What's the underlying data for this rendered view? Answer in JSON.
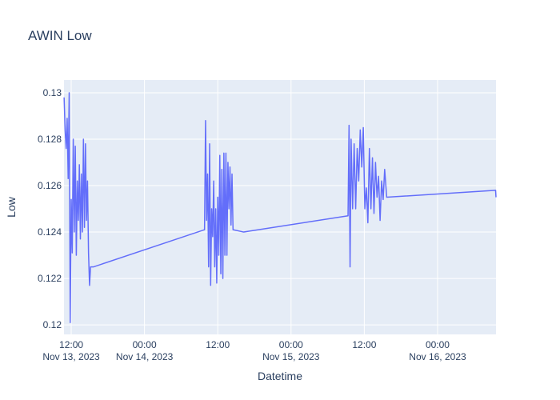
{
  "chart_data": {
    "type": "line",
    "title": "AWIN Low",
    "x_label": "Datetime",
    "y_label": "Low",
    "xlim": [
      "2023-11-13 10:49",
      "2023-11-16 09:34"
    ],
    "xticks": [
      {
        "value": "2023-11-13 12:00",
        "label": [
          "12:00",
          "Nov 13, 2023"
        ]
      },
      {
        "value": "2023-11-14 00:00",
        "label": [
          "00:00",
          "Nov 14, 2023"
        ]
      },
      {
        "value": "2023-11-14 12:00",
        "label": [
          "12:00"
        ]
      },
      {
        "value": "2023-11-15 00:00",
        "label": [
          "00:00",
          "Nov 15, 2023"
        ]
      },
      {
        "value": "2023-11-15 12:00",
        "label": [
          "12:00"
        ]
      },
      {
        "value": "2023-11-16 00:00",
        "label": [
          "00:00",
          "Nov 16, 2023"
        ]
      }
    ],
    "ylim": [
      0.11959,
      0.13055
    ],
    "yticks": [
      0.12,
      0.122,
      0.124,
      0.126,
      0.128,
      0.13
    ],
    "grid": true,
    "series": [
      {
        "name": "Low",
        "color": "#636efa",
        "x": [
          "2023-11-13 10:50",
          "2023-11-13 11:00",
          "2023-11-13 11:10",
          "2023-11-13 11:20",
          "2023-11-13 11:30",
          "2023-11-13 11:40",
          "2023-11-13 11:50",
          "2023-11-13 12:00",
          "2023-11-13 12:10",
          "2023-11-13 12:20",
          "2023-11-13 12:30",
          "2023-11-13 12:40",
          "2023-11-13 12:50",
          "2023-11-13 13:00",
          "2023-11-13 13:10",
          "2023-11-13 13:20",
          "2023-11-13 13:30",
          "2023-11-13 13:40",
          "2023-11-13 13:50",
          "2023-11-13 14:00",
          "2023-11-13 14:10",
          "2023-11-13 14:20",
          "2023-11-13 14:30",
          "2023-11-13 14:40",
          "2023-11-13 14:50",
          "2023-11-13 15:00",
          "2023-11-13 15:10",
          "2023-11-13 15:40",
          "2023-11-14 09:50",
          "2023-11-14 10:00",
          "2023-11-14 10:10",
          "2023-11-14 10:20",
          "2023-11-14 10:30",
          "2023-11-14 10:40",
          "2023-11-14 10:50",
          "2023-11-14 11:00",
          "2023-11-14 11:10",
          "2023-11-14 11:20",
          "2023-11-14 11:30",
          "2023-11-14 11:40",
          "2023-11-14 11:50",
          "2023-11-14 12:00",
          "2023-11-14 12:10",
          "2023-11-14 12:20",
          "2023-11-14 12:30",
          "2023-11-14 12:40",
          "2023-11-14 12:50",
          "2023-11-14 13:00",
          "2023-11-14 13:10",
          "2023-11-14 13:20",
          "2023-11-14 13:30",
          "2023-11-14 13:40",
          "2023-11-14 13:50",
          "2023-11-14 14:00",
          "2023-11-14 14:10",
          "2023-11-14 14:20",
          "2023-11-14 14:30",
          "2023-11-14 16:15",
          "2023-11-15 09:20",
          "2023-11-15 09:30",
          "2023-11-15 09:40",
          "2023-11-15 09:50",
          "2023-11-15 10:05",
          "2023-11-15 10:20",
          "2023-11-15 10:35",
          "2023-11-15 10:50",
          "2023-11-15 11:05",
          "2023-11-15 11:20",
          "2023-11-15 11:35",
          "2023-11-15 11:50",
          "2023-11-15 12:05",
          "2023-11-15 12:20",
          "2023-11-15 12:35",
          "2023-11-15 12:50",
          "2023-11-15 13:05",
          "2023-11-15 13:20",
          "2023-11-15 13:35",
          "2023-11-15 13:50",
          "2023-11-15 14:05",
          "2023-11-15 14:20",
          "2023-11-15 14:35",
          "2023-11-15 14:50",
          "2023-11-15 15:05",
          "2023-11-15 15:20",
          "2023-11-15 15:40",
          "2023-11-16 09:30",
          "2023-11-16 09:34"
        ],
        "values": [
          0.1298,
          0.1284,
          0.1276,
          0.1289,
          0.1263,
          0.13,
          0.1201,
          0.1254,
          0.1231,
          0.128,
          0.124,
          0.1277,
          0.123,
          0.1262,
          0.1245,
          0.1269,
          0.1237,
          0.1265,
          0.124,
          0.128,
          0.1242,
          0.1278,
          0.1245,
          0.1262,
          0.1231,
          0.1217,
          0.1225,
          0.1225,
          0.1241,
          0.1288,
          0.1245,
          0.1265,
          0.1225,
          0.1278,
          0.1217,
          0.125,
          0.1238,
          0.1262,
          0.1225,
          0.125,
          0.1218,
          0.1255,
          0.123,
          0.1273,
          0.1222,
          0.1267,
          0.122,
          0.1274,
          0.123,
          0.1274,
          0.123,
          0.127,
          0.125,
          0.1268,
          0.1243,
          0.1265,
          0.1241,
          0.124,
          0.1247,
          0.1286,
          0.1225,
          0.128,
          0.125,
          0.1278,
          0.125,
          0.1276,
          0.1262,
          0.1284,
          0.1268,
          0.1285,
          0.125,
          0.1259,
          0.1244,
          0.1276,
          0.125,
          0.1272,
          0.1248,
          0.127,
          0.1255,
          0.1264,
          0.1245,
          0.1262,
          0.1254,
          0.1267,
          0.1255,
          0.1258,
          0.1255
        ]
      }
    ]
  }
}
